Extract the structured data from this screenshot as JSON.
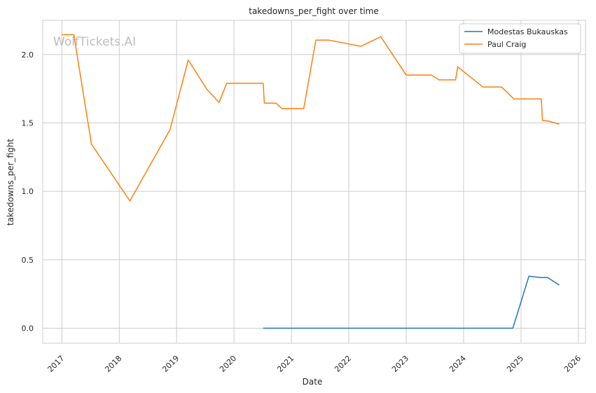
{
  "chart_data": {
    "type": "line",
    "title": "takedowns_per_fight over time",
    "xlabel": "Date",
    "ylabel": "takedowns_per_fight",
    "watermark": "WolfTickets.AI",
    "x_ticks": [
      "2017",
      "2018",
      "2019",
      "2020",
      "2021",
      "2022",
      "2023",
      "2024",
      "2025",
      "2026"
    ],
    "y_ticks": [
      "0.0",
      "0.5",
      "1.0",
      "1.5",
      "2.0"
    ],
    "xlim": [
      "2016-09-01",
      "2026-02-15"
    ],
    "ylim": [
      -0.11,
      2.25
    ],
    "grid": true,
    "legend_position": "top-right",
    "series": [
      {
        "name": "Modestas Bukauskas",
        "color": "#1f77b4",
        "points": [
          [
            "2020-07-05",
            0.0
          ],
          [
            "2024-11-10",
            0.0
          ],
          [
            "2025-02-20",
            0.38
          ],
          [
            "2025-05-10",
            0.37
          ],
          [
            "2025-06-20",
            0.37
          ],
          [
            "2025-09-01",
            0.315
          ]
        ]
      },
      {
        "name": "Paul Craig",
        "color": "#ff7f0e",
        "points": [
          [
            "2016-12-30",
            2.145
          ],
          [
            "2017-03-18",
            2.145
          ],
          [
            "2017-07-08",
            1.345
          ],
          [
            "2018-03-10",
            0.93
          ],
          [
            "2018-11-20",
            1.45
          ],
          [
            "2019-03-16",
            1.96
          ],
          [
            "2019-07-13",
            1.745
          ],
          [
            "2019-09-28",
            1.65
          ],
          [
            "2019-11-16",
            1.79
          ],
          [
            "2020-07-05",
            1.79
          ],
          [
            "2020-07-12",
            1.645
          ],
          [
            "2020-09-25",
            1.645
          ],
          [
            "2020-10-31",
            1.605
          ],
          [
            "2021-03-20",
            1.605
          ],
          [
            "2021-06-05",
            2.105
          ],
          [
            "2021-08-28",
            2.105
          ],
          [
            "2022-03-19",
            2.06
          ],
          [
            "2022-07-23",
            2.13
          ],
          [
            "2023-01-01",
            1.85
          ],
          [
            "2023-06-10",
            1.85
          ],
          [
            "2023-07-29",
            1.815
          ],
          [
            "2023-11-11",
            1.815
          ],
          [
            "2023-11-25",
            1.91
          ],
          [
            "2024-05-04",
            1.762
          ],
          [
            "2024-08-31",
            1.762
          ],
          [
            "2024-11-16",
            1.675
          ],
          [
            "2025-05-10",
            1.675
          ],
          [
            "2025-05-17",
            1.518
          ],
          [
            "2025-06-20",
            1.515
          ],
          [
            "2025-09-01",
            1.492
          ]
        ]
      }
    ]
  }
}
